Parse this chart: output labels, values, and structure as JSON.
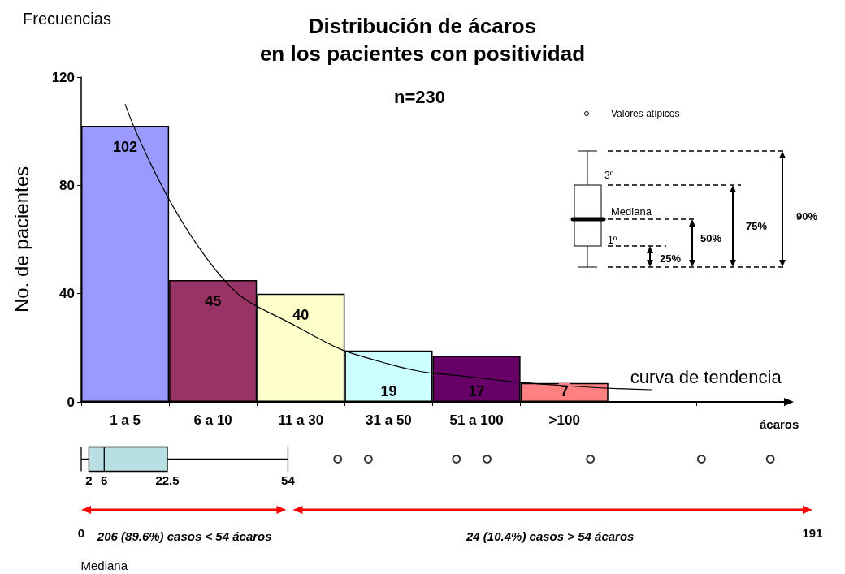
{
  "chart_data": [
    {
      "type": "bar",
      "title": "Distribución de ácaros\nen los pacientes con positividad",
      "subtitle": "n=230",
      "xlabel": "ácaros",
      "ylabel": "No. de pacientes",
      "categories": [
        "1 a 5",
        "6 a 10",
        "11 a 30",
        "31 a 50",
        "51 a 100",
        ">100",
        null,
        null
      ],
      "series": [
        {
          "type": "bar",
          "values": [
            102,
            45,
            40,
            19,
            17,
            7,
            null,
            null
          ],
          "colors": [
            "#9999ff",
            "#993366",
            "#ffffcc",
            "#ccffff",
            "#660066",
            "#ff8080",
            null,
            null
          ],
          "value_labels": [
            "102",
            "45",
            "40",
            "19",
            "17",
            "7",
            null,
            null
          ]
        },
        {
          "type": "line",
          "name": "curva de tendencia",
          "color": "#000000",
          "values": [
            110,
            50,
            27,
            14,
            9,
            6,
            4.5,
            null
          ]
        }
      ],
      "marker": "none",
      "ylim": [
        0,
        120
      ],
      "yticks": [
        0,
        40,
        80,
        120
      ],
      "legend": false,
      "annotations": [
        "Frecuencias",
        "Valores atípicos",
        "3º",
        "Mediana",
        "1º",
        "25%",
        "50%",
        "75%",
        "90%"
      ]
    },
    {
      "type": "box",
      "orientation": "horizontal",
      "categories": [
        null
      ],
      "color": "#b8dfe2",
      "boxes": [
        {
          "low": 0,
          "q1": 2,
          "median": 6,
          "q3": 22.5,
          "high": 54,
          "outliers": [
            67,
            75,
            98,
            106,
            133,
            162,
            180
          ]
        }
      ],
      "xlim": [
        0,
        191
      ],
      "xticks": [
        0,
        191
      ],
      "annotations": [
        "206 (89.6%) casos < 54 ácaros",
        "24 (10.4%) casos > 54 ácaros",
        "Mediana",
        "2",
        "6",
        "22.5",
        "54"
      ]
    }
  ]
}
